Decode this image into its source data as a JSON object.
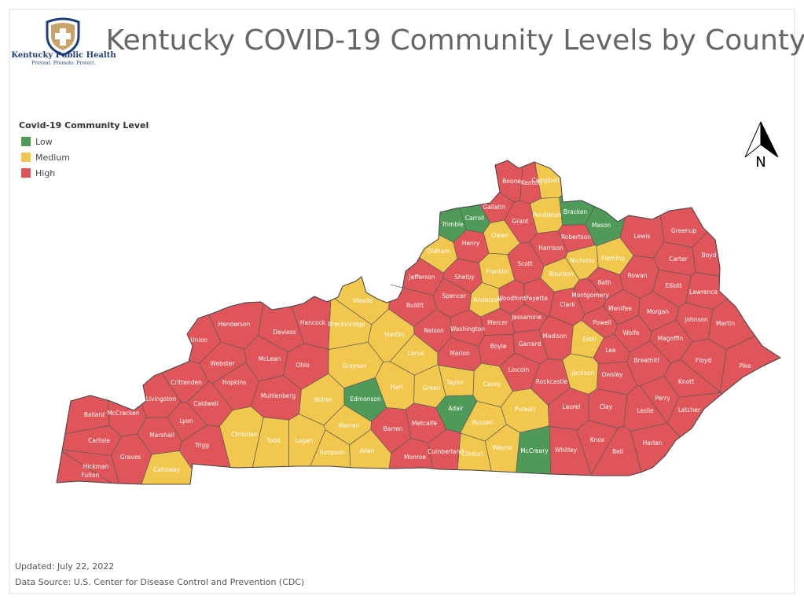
{
  "header": {
    "logo_name": "Kentucky Public Health",
    "logo_tagline": "Prevent. Promote. Protect.",
    "title": "Kentucky COVID-19 Community Levels by County"
  },
  "legend": {
    "title": "Covid-19 Community Level",
    "items": [
      {
        "name": "Low",
        "color": "#4f9a58"
      },
      {
        "name": "Medium",
        "color": "#f2c74e"
      },
      {
        "name": "High",
        "color": "#e0555a"
      }
    ]
  },
  "north": "N",
  "counties": [
    {
      "name": "Boone",
      "level": "High"
    },
    {
      "name": "Kenton",
      "level": "High"
    },
    {
      "name": "Campbell",
      "level": "Medium"
    },
    {
      "name": "Gallatin",
      "level": "High"
    },
    {
      "name": "Carroll",
      "level": "Low"
    },
    {
      "name": "Trimble",
      "level": "Low"
    },
    {
      "name": "Grant",
      "level": "High"
    },
    {
      "name": "Pendleton",
      "level": "Medium"
    },
    {
      "name": "Bracken",
      "level": "Low"
    },
    {
      "name": "Mason",
      "level": "Low"
    },
    {
      "name": "Owen",
      "level": "Medium"
    },
    {
      "name": "Henry",
      "level": "High"
    },
    {
      "name": "Oldham",
      "level": "Medium"
    },
    {
      "name": "Robertson",
      "level": "High"
    },
    {
      "name": "Harrison",
      "level": "High"
    },
    {
      "name": "Lewis",
      "level": "High"
    },
    {
      "name": "Greenup",
      "level": "High"
    },
    {
      "name": "Boyd",
      "level": "High"
    },
    {
      "name": "Carter",
      "level": "High"
    },
    {
      "name": "Nicholas",
      "level": "Medium"
    },
    {
      "name": "Fleming",
      "level": "Medium"
    },
    {
      "name": "Scott",
      "level": "High"
    },
    {
      "name": "Franklin",
      "level": "Medium"
    },
    {
      "name": "Shelby",
      "level": "High"
    },
    {
      "name": "Jefferson",
      "level": "High"
    },
    {
      "name": "Bourbon",
      "level": "Medium"
    },
    {
      "name": "Rowan",
      "level": "High"
    },
    {
      "name": "Elliott",
      "level": "High"
    },
    {
      "name": "Bath",
      "level": "High"
    },
    {
      "name": "Spencer",
      "level": "High"
    },
    {
      "name": "Woodford",
      "level": "High"
    },
    {
      "name": "Fayette",
      "level": "High"
    },
    {
      "name": "Anderson",
      "level": "Medium"
    },
    {
      "name": "Montgomery",
      "level": "High"
    },
    {
      "name": "Lawrence",
      "level": "High"
    },
    {
      "name": "Bullitt",
      "level": "High"
    },
    {
      "name": "Clark",
      "level": "High"
    },
    {
      "name": "Menifee",
      "level": "High"
    },
    {
      "name": "Morgan",
      "level": "High"
    },
    {
      "name": "Meade",
      "level": "Medium"
    },
    {
      "name": "Jessamine",
      "level": "High"
    },
    {
      "name": "Johnson",
      "level": "High"
    },
    {
      "name": "Martin",
      "level": "High"
    },
    {
      "name": "Henderson",
      "level": "High"
    },
    {
      "name": "Hancock",
      "level": "High"
    },
    {
      "name": "Breckinridge",
      "level": "Medium"
    },
    {
      "name": "Mercer",
      "level": "High"
    },
    {
      "name": "Powell",
      "level": "High"
    },
    {
      "name": "Daviess",
      "level": "High"
    },
    {
      "name": "Washington",
      "level": "High"
    },
    {
      "name": "Nelson",
      "level": "High"
    },
    {
      "name": "Hardin",
      "level": "Medium"
    },
    {
      "name": "Wolfe",
      "level": "High"
    },
    {
      "name": "Madison",
      "level": "High"
    },
    {
      "name": "Estill",
      "level": "Medium"
    },
    {
      "name": "Magoffin",
      "level": "High"
    },
    {
      "name": "Union",
      "level": "High"
    },
    {
      "name": "Garrard",
      "level": "High"
    },
    {
      "name": "Boyle",
      "level": "High"
    },
    {
      "name": "Lee",
      "level": "High"
    },
    {
      "name": "Larue",
      "level": "Medium"
    },
    {
      "name": "Marion",
      "level": "High"
    },
    {
      "name": "Floyd",
      "level": "High"
    },
    {
      "name": "Breathitt",
      "level": "High"
    },
    {
      "name": "McLean",
      "level": "High"
    },
    {
      "name": "Webster",
      "level": "High"
    },
    {
      "name": "Ohio",
      "level": "High"
    },
    {
      "name": "Grayson",
      "level": "Medium"
    },
    {
      "name": "Pike",
      "level": "High"
    },
    {
      "name": "Lincoln",
      "level": "High"
    },
    {
      "name": "Jackson",
      "level": "Medium"
    },
    {
      "name": "Owsley",
      "level": "High"
    },
    {
      "name": "Knott",
      "level": "High"
    },
    {
      "name": "Crittenden",
      "level": "High"
    },
    {
      "name": "Hopkins",
      "level": "High"
    },
    {
      "name": "Rockcastle",
      "level": "High"
    },
    {
      "name": "Casey",
      "level": "Medium"
    },
    {
      "name": "Taylor",
      "level": "Medium"
    },
    {
      "name": "Hart",
      "level": "Medium"
    },
    {
      "name": "Green",
      "level": "Medium"
    },
    {
      "name": "Livingston",
      "level": "High"
    },
    {
      "name": "Muhlenberg",
      "level": "High"
    },
    {
      "name": "Butler",
      "level": "Medium"
    },
    {
      "name": "Edmonson",
      "level": "Low"
    },
    {
      "name": "Caldwell",
      "level": "High"
    },
    {
      "name": "Perry",
      "level": "High"
    },
    {
      "name": "Ballard",
      "level": "High"
    },
    {
      "name": "McCracken",
      "level": "High"
    },
    {
      "name": "Adair",
      "level": "Low"
    },
    {
      "name": "Laurel",
      "level": "High"
    },
    {
      "name": "Clay",
      "level": "High"
    },
    {
      "name": "Pulaski",
      "level": "Medium"
    },
    {
      "name": "Leslie",
      "level": "High"
    },
    {
      "name": "Letcher",
      "level": "High"
    },
    {
      "name": "Lyon",
      "level": "High"
    },
    {
      "name": "Russell",
      "level": "Medium"
    },
    {
      "name": "Metcalfe",
      "level": "High"
    },
    {
      "name": "Warren",
      "level": "Medium"
    },
    {
      "name": "Barren",
      "level": "High"
    },
    {
      "name": "Christian",
      "level": "Medium"
    },
    {
      "name": "Marshall",
      "level": "High"
    },
    {
      "name": "Carlisle",
      "level": "High"
    },
    {
      "name": "Todd",
      "level": "Medium"
    },
    {
      "name": "Logan",
      "level": "Medium"
    },
    {
      "name": "Knox",
      "level": "High"
    },
    {
      "name": "Harlan",
      "level": "High"
    },
    {
      "name": "Trigg",
      "level": "High"
    },
    {
      "name": "Graves",
      "level": "High"
    },
    {
      "name": "Simpson",
      "level": "Medium"
    },
    {
      "name": "Allen",
      "level": "Medium"
    },
    {
      "name": "Cumberland",
      "level": "High"
    },
    {
      "name": "Clinton",
      "level": "Medium"
    },
    {
      "name": "Wayne",
      "level": "Medium"
    },
    {
      "name": "McCreary",
      "level": "Low"
    },
    {
      "name": "Whitley",
      "level": "High"
    },
    {
      "name": "Bell",
      "level": "High"
    },
    {
      "name": "Monroe",
      "level": "High"
    },
    {
      "name": "Hickman",
      "level": "High"
    },
    {
      "name": "Fulton",
      "level": "High"
    },
    {
      "name": "Calloway",
      "level": "Medium"
    }
  ],
  "footer": {
    "updated_label": "Updated:",
    "updated_date": "July 22, 2022",
    "source": "Data Source: U.S. Center for Disease Control and Prevention (CDC)"
  }
}
